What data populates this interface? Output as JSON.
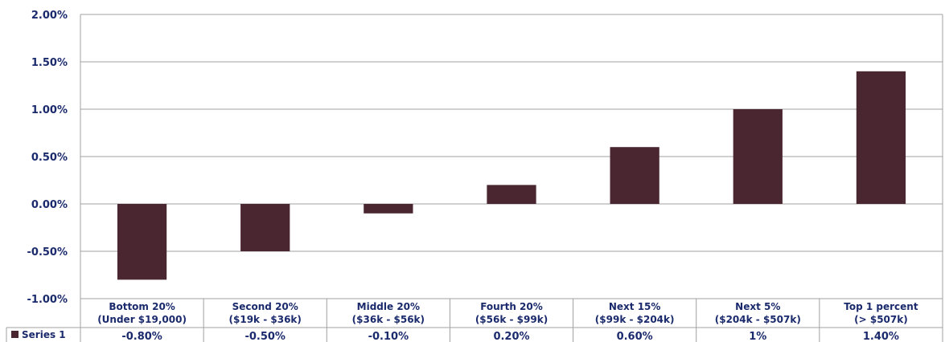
{
  "chart_data": {
    "type": "bar",
    "categories": [
      [
        "Bottom 20%",
        "(Under $19,000)"
      ],
      [
        "Second 20%",
        "($19k - $36k)"
      ],
      [
        "Middle 20%",
        "($36k - $56k)"
      ],
      [
        "Fourth 20%",
        "($56k - $99k)"
      ],
      [
        "Next 15%",
        "($99k - $204k)"
      ],
      [
        "Next 5%",
        "($204k - $507k)"
      ],
      [
        "Top 1 percent",
        "(> $507k)"
      ]
    ],
    "series": [
      {
        "name": "Series 1",
        "values": [
          -0.8,
          -0.5,
          -0.1,
          0.2,
          0.6,
          1.0,
          1.4
        ],
        "value_labels": [
          "-0.80%",
          "-0.50%",
          "-0.10%",
          "0.20%",
          "0.60%",
          "1%",
          "1.40%"
        ]
      }
    ],
    "ylim": [
      -1.0,
      2.0
    ],
    "yticks": [
      "2.00%",
      "1.50%",
      "1.00%",
      "0.50%",
      "0.00%",
      "-0.50%",
      "-1.00%"
    ],
    "ytick_values": [
      2.0,
      1.5,
      1.0,
      0.5,
      0.0,
      -0.5,
      -1.0
    ],
    "grid": true,
    "legend": "data-table",
    "colors": {
      "bar": "#4a2630",
      "grid": "#a0a0a0",
      "text": "#1a2a6c"
    }
  }
}
